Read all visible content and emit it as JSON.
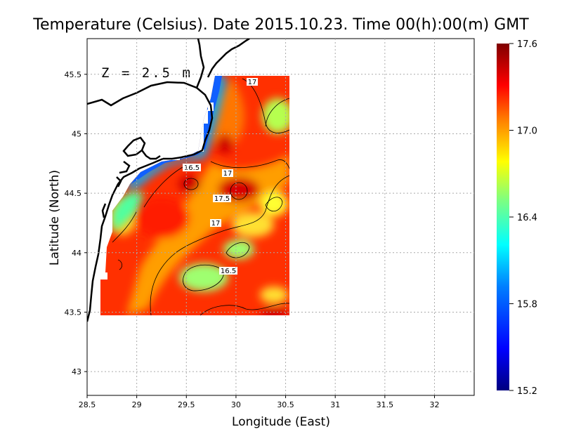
{
  "title": "Temperature (Celsius). Date 2015.10.23. Time 00(h):00(m)  GMT",
  "depth_label": "Z = 2.5 m",
  "axes": {
    "xlabel": "Longitude (East)",
    "ylabel": "Latitude (North)",
    "x_ticks": [
      "28.5",
      "29",
      "29.5",
      "30",
      "30.5",
      "31",
      "31.5",
      "32"
    ],
    "y_ticks": [
      "43",
      "43.5",
      "44",
      "44.5",
      "45",
      "45.5"
    ],
    "xlim": [
      28.5,
      32.4
    ],
    "ylim": [
      42.8,
      45.8
    ],
    "grid": true
  },
  "colorbar": {
    "ticks": [
      "15.2",
      "15.8",
      "16.4",
      "17.0",
      "17.6"
    ],
    "range": [
      15.2,
      17.6
    ],
    "colors": [
      "#00007f",
      "#0000ff",
      "#007fff",
      "#00ffff",
      "#7fff7f",
      "#ffff00",
      "#ff7f00",
      "#ff0000",
      "#7f0000"
    ]
  },
  "contour_labels": [
    "17",
    "16.5",
    "17",
    "17.5",
    "17",
    "16.5"
  ],
  "colors": {
    "land_edge": "#000000",
    "contour": "#000000",
    "grid": "#aaaaaa"
  }
}
